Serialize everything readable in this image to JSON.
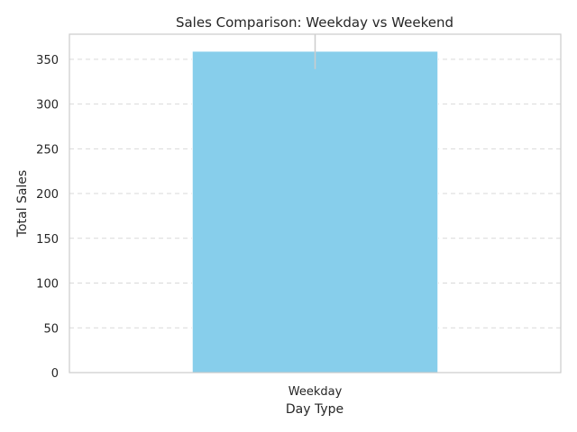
{
  "chart_data": {
    "type": "bar",
    "title": "Sales Comparison: Weekday vs Weekend",
    "xlabel": "Day Type",
    "ylabel": "Total Sales",
    "categories": [
      "Weekday"
    ],
    "values": [
      359
    ],
    "error_bars": [
      20
    ],
    "ylim": [
      0,
      378
    ],
    "yticks": [
      0,
      50,
      100,
      150,
      200,
      250,
      300,
      350
    ],
    "ytick_labels": [
      "0",
      "50",
      "100",
      "150",
      "200",
      "250",
      "300",
      "350"
    ],
    "grid": "y-dashed",
    "bar_color": "#87ceeb"
  }
}
